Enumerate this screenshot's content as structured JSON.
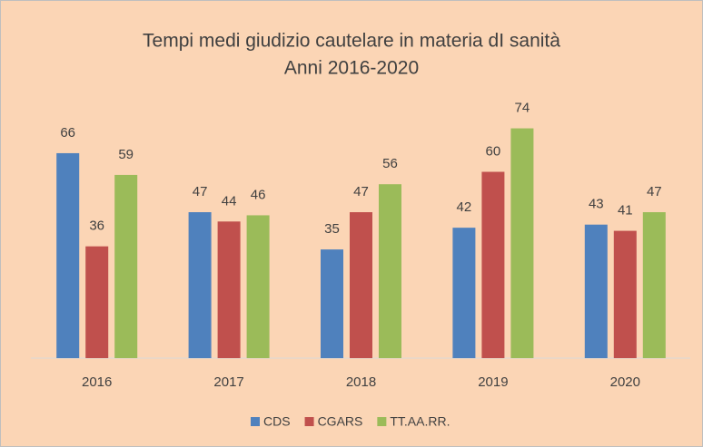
{
  "chart_data": {
    "type": "bar",
    "title": "Tempi medi giudizio cautelare in materia dI sanità",
    "subtitle": "Anni 2016-2020",
    "categories": [
      "2016",
      "2017",
      "2018",
      "2019",
      "2020"
    ],
    "series": [
      {
        "name": "CDS",
        "color": "#4f81bd",
        "values": [
          66,
          47,
          35,
          42,
          43
        ]
      },
      {
        "name": "CGARS",
        "color": "#c0504d",
        "values": [
          36,
          44,
          47,
          60,
          41
        ]
      },
      {
        "name": "TT.AA.RR.",
        "color": "#9bbb59",
        "values": [
          59,
          46,
          56,
          74,
          47
        ]
      }
    ],
    "ylim": [
      0,
      80
    ],
    "legend": "bottom"
  }
}
